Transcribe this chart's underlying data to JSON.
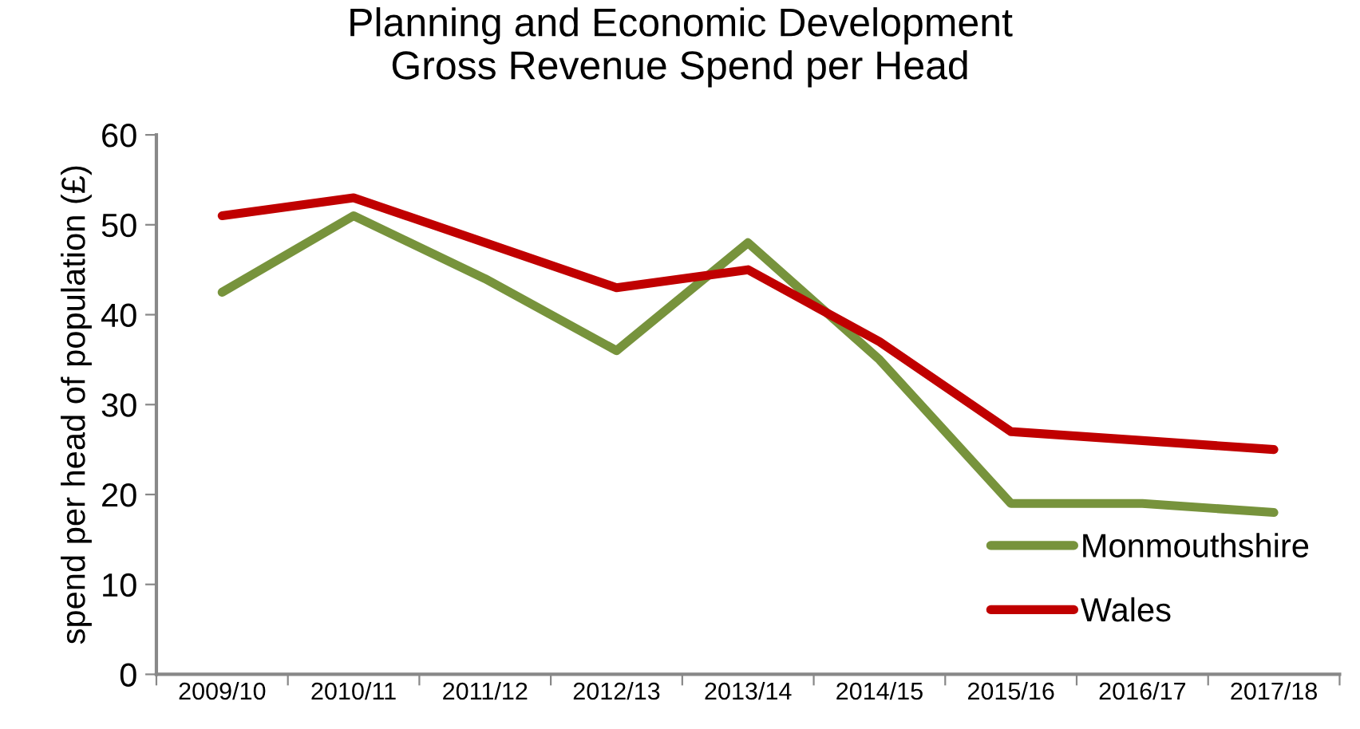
{
  "chart_data": {
    "type": "line",
    "title": "Planning and Economic Development\nGross Revenue Spend per Head",
    "ylabel": "spend per head of population (£)",
    "categories": [
      "2009/10",
      "2010/11",
      "2011/12",
      "2012/13",
      "2013/14",
      "2014/15",
      "2015/16",
      "2016/17",
      "2017/18"
    ],
    "series": [
      {
        "name": "Monmouthshire",
        "color": "#77933c",
        "values": [
          42.5,
          51,
          44,
          36,
          48,
          35,
          19,
          19,
          18
        ]
      },
      {
        "name": "Wales",
        "color": "#c00000",
        "values": [
          51,
          53,
          48,
          43,
          45,
          37,
          27,
          26,
          25
        ]
      }
    ],
    "ylim": [
      0,
      60
    ],
    "yticks": [
      0,
      10,
      20,
      30,
      40,
      50,
      60
    ],
    "grid": false,
    "legend": "bottom right",
    "marker": "none",
    "line_style": "solid"
  }
}
